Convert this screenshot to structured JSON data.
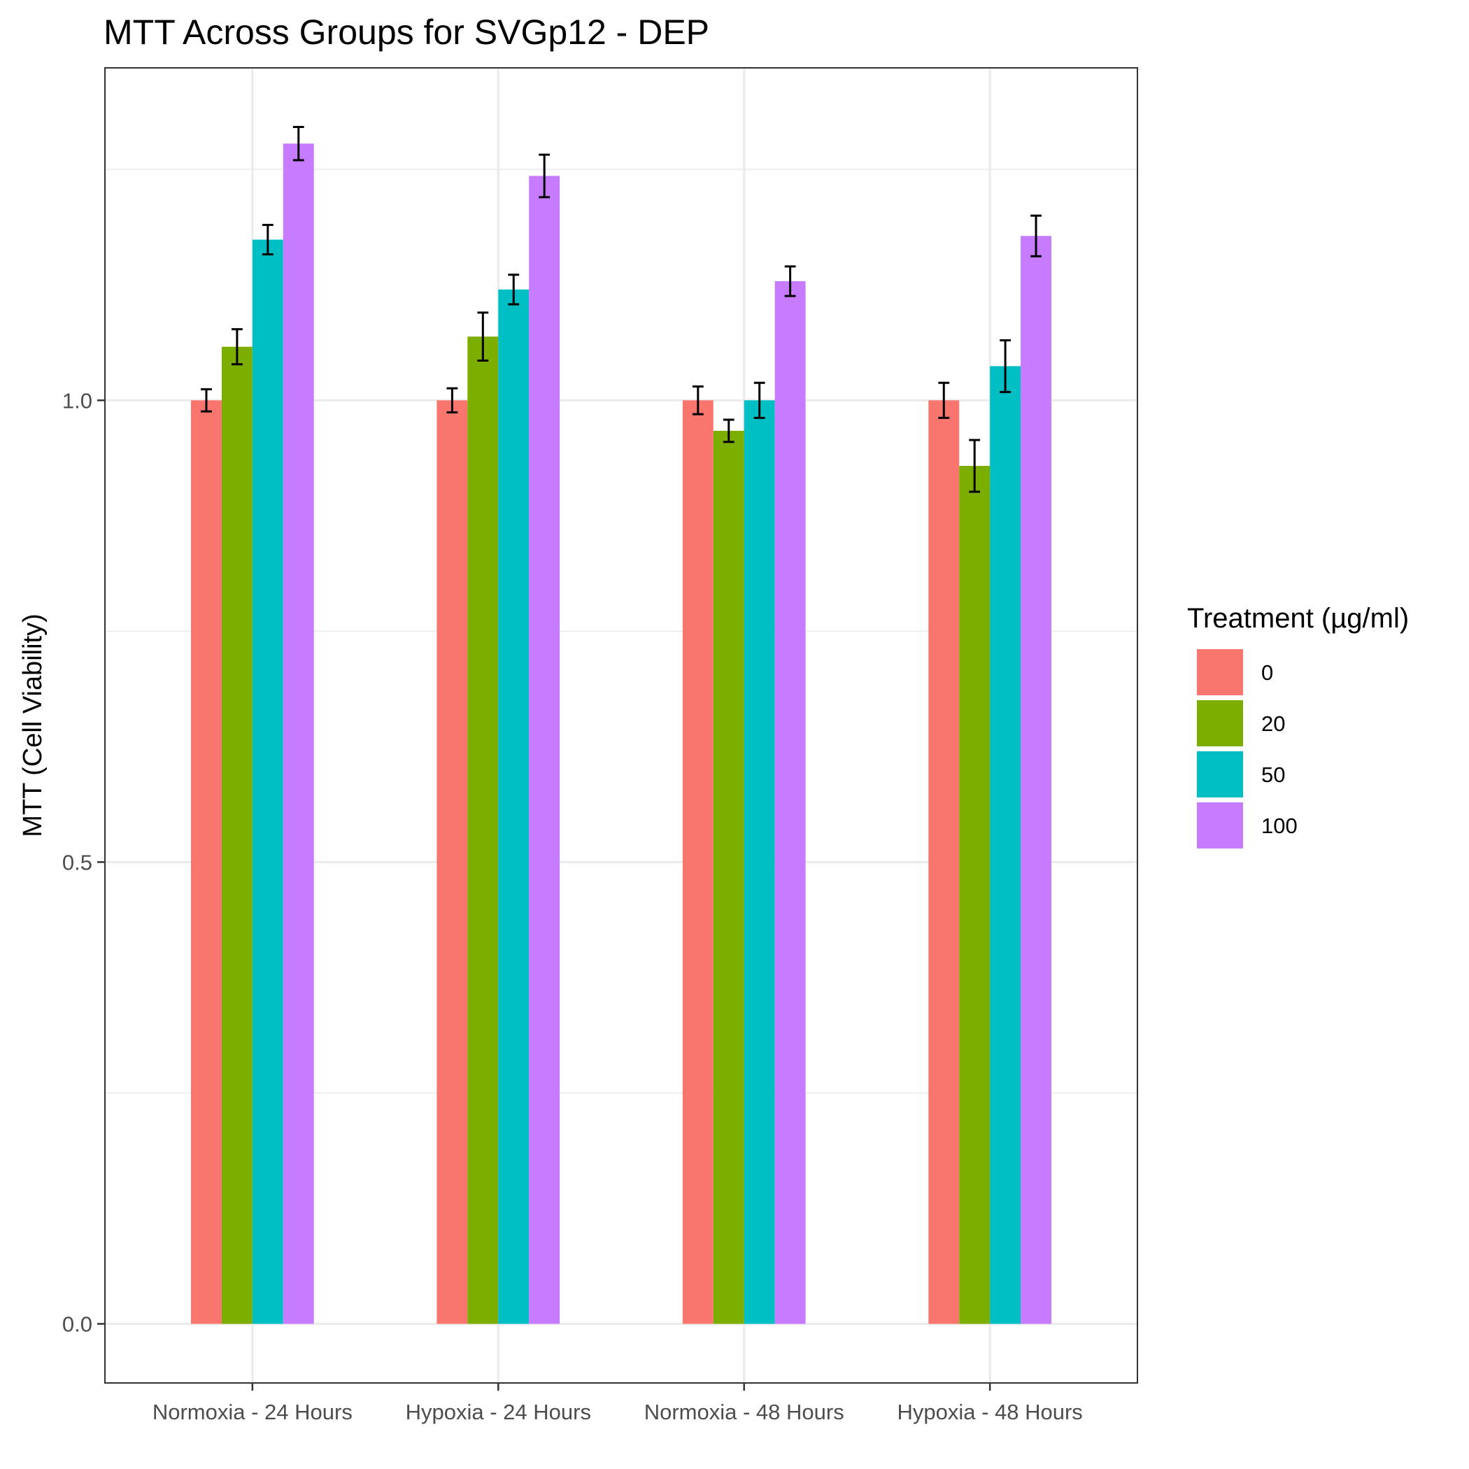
{
  "chart_data": {
    "type": "bar",
    "title": "MTT Across Groups for SVGp12 - DEP",
    "xlabel": "",
    "ylabel": "MTT (Cell Viability)",
    "ylim": [
      -0.064,
      1.36
    ],
    "yticks": [
      "0.0",
      "0.5",
      "1.0"
    ],
    "ytick_values": [
      0,
      0.5,
      1.0
    ],
    "grid": true,
    "legend_title": "Treatment (µg/ml)",
    "legend_position": "right",
    "categories": [
      "Normoxia - 24 Hours",
      "Hypoxia - 24 Hours",
      "Normoxia - 48 Hours",
      "Hypoxia - 48 Hours"
    ],
    "series": [
      {
        "name": "0",
        "color": "#F8766D",
        "values": [
          1.0,
          1.0,
          1.0,
          1.0
        ],
        "errors": [
          0.012,
          0.013,
          0.015,
          0.019
        ]
      },
      {
        "name": "20",
        "color": "#7CAE00",
        "values": [
          1.058,
          1.069,
          0.967,
          0.929
        ],
        "errors": [
          0.019,
          0.026,
          0.012,
          0.028
        ]
      },
      {
        "name": "50",
        "color": "#00BFC4",
        "values": [
          1.174,
          1.12,
          1.0,
          1.037
        ],
        "errors": [
          0.016,
          0.016,
          0.019,
          0.028
        ]
      },
      {
        "name": "100",
        "color": "#C77CFF",
        "values": [
          1.278,
          1.243,
          1.129,
          1.178
        ],
        "errors": [
          0.018,
          0.023,
          0.016,
          0.022
        ]
      }
    ]
  }
}
